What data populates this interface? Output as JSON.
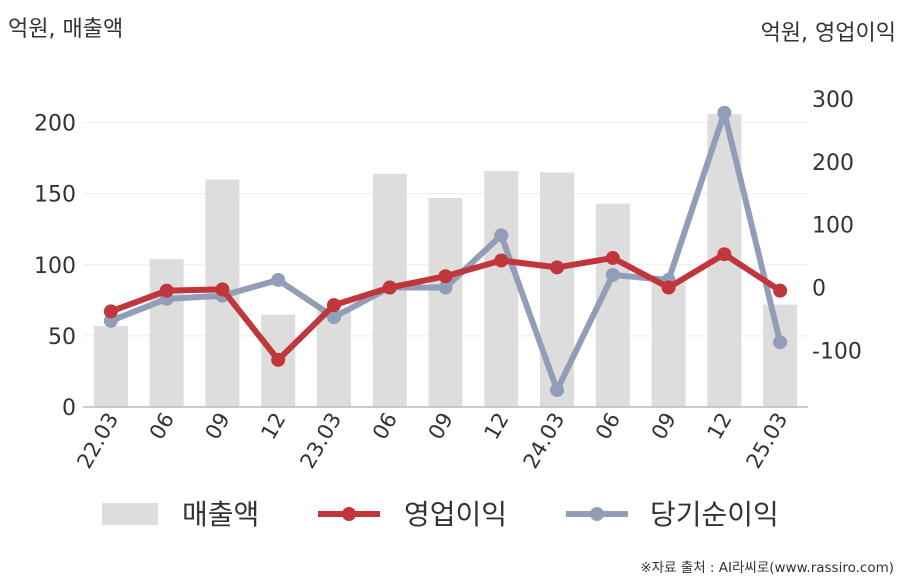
{
  "chart_data": {
    "type": "bar+line",
    "left_axis_unit": "억원, 매출액",
    "right_axis_unit": "억원, 영업이익",
    "categories": [
      "22.03",
      "06",
      "09",
      "12",
      "23.03",
      "06",
      "09",
      "12",
      "24.03",
      "06",
      "09",
      "12",
      "25.03"
    ],
    "left_ylim": [
      0,
      230
    ],
    "left_ticks": [
      "0",
      "50",
      "100",
      "150",
      "200"
    ],
    "right_ylim": [
      -190,
      330
    ],
    "right_ticks": [
      "-100",
      "0",
      "100",
      "200",
      "300"
    ],
    "series": [
      {
        "name": "매출액",
        "kind": "bar",
        "axis": "left",
        "color": "#dddddd",
        "values": [
          57,
          104,
          160,
          65,
          68,
          164,
          147,
          166,
          165,
          143,
          88,
          206,
          72
        ]
      },
      {
        "name": "영업이익",
        "kind": "line",
        "axis": "right",
        "color": "#c0363a",
        "values": [
          -38,
          -5,
          -3,
          -115,
          -28,
          0,
          18,
          43,
          32,
          47,
          0,
          53,
          -5
        ]
      },
      {
        "name": "당기순이익",
        "kind": "line",
        "axis": "right",
        "color": "#929db8",
        "values": [
          -53,
          -18,
          -13,
          12,
          -47,
          0,
          0,
          83,
          -163,
          20,
          12,
          278,
          -87
        ]
      }
    ],
    "grid": true,
    "legend_position": "bottom"
  },
  "source": "※자료 출처 : AI라씨로(www.rassiro.com)"
}
